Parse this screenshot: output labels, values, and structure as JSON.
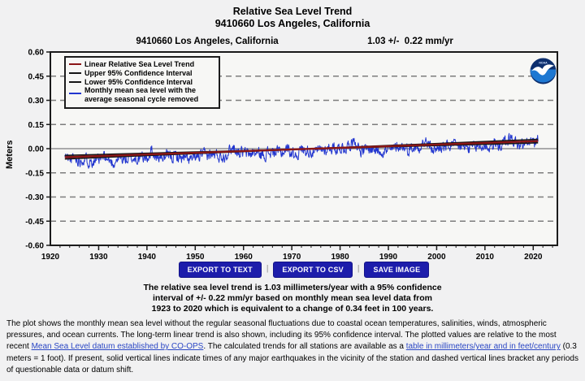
{
  "page": {
    "title_line1": "Relative Sea Level Trend",
    "title_line2": "9410660 Los Angeles, California"
  },
  "chart": {
    "station_label": "9410660 Los Angeles, California",
    "trend_value_label": "1.03 +/-  0.22 mm/yr",
    "logo_icon": "noaa-logo"
  },
  "chart_data": {
    "type": "line",
    "title": "9410660 Los Angeles, California",
    "annotation": "1.03 +/- 0.22 mm/yr",
    "xlabel": "",
    "ylabel": "Meters",
    "xlim": [
      1920,
      2025
    ],
    "ylim": [
      -0.6,
      0.6
    ],
    "xticks": [
      1920,
      1930,
      1940,
      1950,
      1960,
      1970,
      1980,
      1990,
      2000,
      2010,
      2020
    ],
    "yticks": [
      0.6,
      0.45,
      0.3,
      0.15,
      0.0,
      -0.15,
      -0.3,
      -0.45,
      -0.6
    ],
    "grid": "horizontal, dashed except solid zero line",
    "legend_position": "top-left",
    "series": [
      {
        "name": "Linear Relative Sea Level Trend",
        "color": "#8b1616",
        "x": [
          1923,
          2021
        ],
        "values": [
          -0.053,
          0.047
        ]
      },
      {
        "name": "Upper 95% Confidence Interval",
        "color": "#161616",
        "x": [
          1923,
          2021
        ],
        "values": [
          -0.064,
          0.058
        ]
      },
      {
        "name": "Lower 95% Confidence Interval",
        "color": "#161616",
        "x": [
          1923,
          2021
        ],
        "values": [
          -0.042,
          0.036
        ]
      },
      {
        "name": "Monthly mean sea level with the\naverage seasonal cycle removed",
        "color": "#2236cf",
        "start_year": 1923,
        "annual_values": [
          -0.05,
          -0.065,
          -0.06,
          -0.07,
          -0.06,
          -0.075,
          -0.07,
          -0.08,
          -0.055,
          -0.07,
          -0.09,
          -0.06,
          -0.065,
          -0.07,
          -0.06,
          -0.065,
          -0.055,
          -0.06,
          -0.01,
          -0.06,
          -0.05,
          -0.055,
          -0.05,
          -0.045,
          -0.055,
          -0.065,
          -0.07,
          -0.06,
          -0.045,
          -0.04,
          -0.035,
          -0.04,
          -0.045,
          -0.045,
          -0.01,
          0.01,
          -0.02,
          -0.025,
          -0.035,
          -0.025,
          -0.03,
          -0.04,
          -0.025,
          -0.025,
          -0.02,
          -0.025,
          0.0,
          -0.025,
          -0.035,
          0.0,
          -0.01,
          -0.015,
          -0.025,
          -0.01,
          -0.005,
          0.01,
          0.0,
          0.01,
          0.0,
          0.03,
          0.06,
          -0.005,
          -0.015,
          0.0,
          -0.005,
          -0.01,
          -0.01,
          -0.015,
          -0.005,
          0.02,
          0.015,
          -0.005,
          0.01,
          0.0,
          0.04,
          0.035,
          -0.005,
          0.0,
          0.01,
          0.01,
          0.02,
          0.01,
          0.015,
          0.005,
          0.0,
          0.01,
          0.01,
          0.02,
          0.01,
          0.03,
          0.02,
          0.04,
          0.06,
          0.05,
          0.025,
          0.02,
          0.04,
          0.04,
          0.045
        ],
        "noise": {
          "seed": 11,
          "amp": 0.062,
          "persistence": 0.5
        }
      }
    ],
    "colors": {
      "grid": "#7d7d7d",
      "frame": "#1b1b1b",
      "plot_bg": "#f7f7f5"
    }
  },
  "buttons": [
    {
      "label": "EXPORT TO TEXT"
    },
    {
      "label": "EXPORT TO CSV"
    },
    {
      "label": "SAVE IMAGE"
    }
  ],
  "buttons_separator": "|",
  "caption": "The relative sea level trend is 1.03 millimeters/year with a 95% confidence\ninterval of +/- 0.22 mm/yr based on monthly mean sea level data from\n1923 to 2020 which is equivalent to a change of 0.34 feet in 100 years.",
  "footnote": {
    "segments": [
      {
        "text": "The plot shows the monthly mean sea level without the regular seasonal fluctuations due to coastal ocean temperatures, salinities, winds, atmospheric pressures, and ocean currents. The long-term linear trend is also shown, including its 95% confidence interval. The plotted values are relative to the most recent ",
        "link": false
      },
      {
        "text": "Mean Sea Level datum established by CO-OPS",
        "link": true,
        "name": "msl-datum-link"
      },
      {
        "text": ". The calculated trends for all stations are available as a ",
        "link": false
      },
      {
        "text": "table in millimeters/year and in feet/century",
        "link": true,
        "name": "trends-table-link"
      },
      {
        "text": " (0.3 meters = 1 foot). If present, solid vertical lines indicate times of any major earthquakes in the vicinity of the station and dashed vertical lines bracket any periods of questionable data or datum shift.",
        "link": false
      }
    ]
  }
}
